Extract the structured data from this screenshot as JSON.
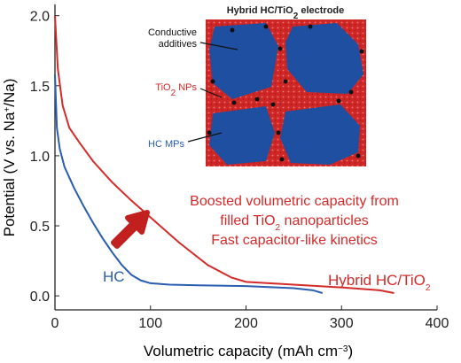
{
  "chart_data": {
    "type": "line",
    "x_label": [
      "Volumetric capacity (mAh cm",
      "−3",
      ")"
    ],
    "y_label": [
      "Potential (V vs. Na",
      "+",
      "/Na)"
    ],
    "xlim": [
      0,
      400
    ],
    "ylim": [
      -0.1,
      2.08
    ],
    "xticks": [
      0,
      100,
      200,
      300,
      400
    ],
    "yticks": [
      {
        "value": 0,
        "label": "0.0"
      },
      0.5,
      {
        "value": 1,
        "label": "1.0"
      },
      1.5,
      {
        "value": 2,
        "label": "2.0"
      }
    ],
    "series": [
      {
        "name": [
          "HC"
        ],
        "color": "#2a5db0",
        "x": [
          0,
          2,
          5,
          10,
          20,
          30,
          40,
          50,
          60,
          70,
          80,
          90,
          100,
          120,
          150,
          200,
          250,
          270,
          280
        ],
        "values": [
          1.58,
          1.2,
          1.05,
          0.92,
          0.77,
          0.64,
          0.52,
          0.41,
          0.31,
          0.22,
          0.15,
          0.11,
          0.09,
          0.08,
          0.075,
          0.07,
          0.055,
          0.04,
          0.02
        ]
      },
      {
        "name": [
          "Hybrid HC/TiO",
          "2"
        ],
        "color": "#d42a2a",
        "x": [
          0,
          3,
          8,
          15,
          25,
          40,
          60,
          80,
          100,
          130,
          160,
          185,
          200,
          250,
          300,
          340,
          355
        ],
        "values": [
          2.0,
          1.62,
          1.36,
          1.2,
          1.1,
          0.96,
          0.81,
          0.68,
          0.56,
          0.38,
          0.22,
          0.13,
          0.1,
          0.08,
          0.06,
          0.04,
          0.02
        ]
      }
    ],
    "annotation": [
      [
        "Boosted volumetric capacity from"
      ],
      [
        "filled TiO",
        "2",
        " nanoparticles"
      ],
      [
        "Fast capacitor-like kinetics"
      ]
    ],
    "inset": {
      "title": [
        "Hybrid HC/TiO",
        "2",
        " electrode"
      ],
      "labels": [
        [
          "Conductive",
          "additives"
        ],
        [
          "TiO",
          "2",
          " NPs"
        ],
        [
          "HC MPs"
        ]
      ]
    }
  }
}
